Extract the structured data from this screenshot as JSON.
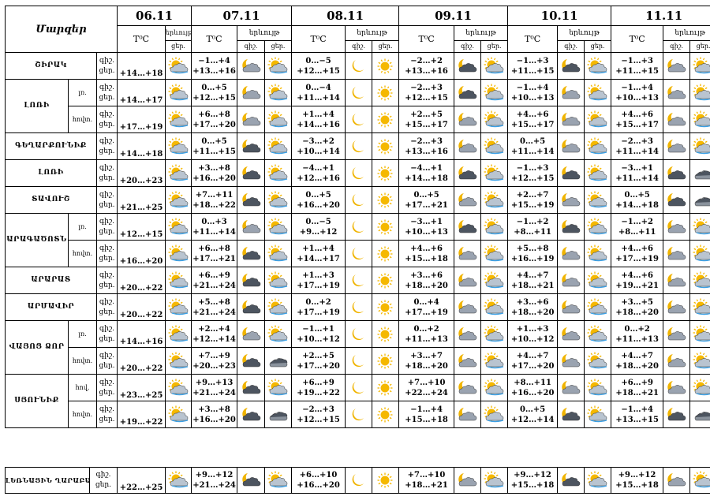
{
  "header": {
    "region_label": "Մարզեր",
    "temp_label": "T⁰C",
    "phen_label": "երևույթ",
    "night": "գիշ.",
    "day": "ցեր.",
    "dates": [
      "06.11",
      "07.11",
      "08.11",
      "09.11",
      "10.11",
      "11.11"
    ]
  },
  "colors": {
    "sun": "#f5b800",
    "cloud": "#9aa3b0",
    "dark_cloud": "#4d5560",
    "moon": "#f0b400",
    "rain": "#3aa0e6"
  },
  "regions": [
    {
      "name": "ՇԻՐԱԿ",
      "rows": [
        {
          "sub": "",
          "night": "գիշ.",
          "day": "ցեր.",
          "d0": "+14…+18",
          "d0i": "sun_cloud",
          "days": [
            [
              "−1…+4",
              "+13…+16",
              "moon_cloud",
              "sun_cloud"
            ],
            [
              "0…−5",
              "+12…+15",
              "moon",
              "sun"
            ],
            [
              "−2…+2",
              "+13…+16",
              "moon_cloud_dark",
              "sun_cloud"
            ],
            [
              "−1…+3",
              "+11…+15",
              "moon_cloud_dark",
              "sun_cloud"
            ],
            [
              "−1…+3",
              "+11…+15",
              "moon_cloud",
              "sun_cloud"
            ]
          ]
        }
      ]
    },
    {
      "name": "ԼՈՌԻ",
      "rows": [
        {
          "sub": "լռ.",
          "night": "գիշ.",
          "day": "ցեր.",
          "d0": "+14…+17",
          "d0i": "sun_cloud",
          "days": [
            [
              "0…+5",
              "+12…+15",
              "moon_cloud",
              "sun_cloud"
            ],
            [
              "0…−4",
              "+11…+14",
              "moon",
              "sun"
            ],
            [
              "−2…+3",
              "+12…+15",
              "moon_cloud_dark",
              "sun_cloud"
            ],
            [
              "−1…+4",
              "+10…+13",
              "moon_cloud",
              "sun_cloud"
            ],
            [
              "−1…+4",
              "+10…+13",
              "moon_cloud",
              "sun_cloud"
            ]
          ]
        },
        {
          "sub": "հովտ.",
          "night": "գիշ.",
          "day": "ցեր.",
          "d0": "+17…+19",
          "d0i": "sun_cloud",
          "days": [
            [
              "+6…+8",
              "+17…+20",
              "moon_cloud",
              "sun_cloud"
            ],
            [
              "+1…+4",
              "+14…+16",
              "moon",
              "sun"
            ],
            [
              "+2…+5",
              "+15…+17",
              "moon_cloud",
              "sun_cloud"
            ],
            [
              "+4…+6",
              "+15…+17",
              "moon_cloud",
              "sun_cloud"
            ],
            [
              "+4…+6",
              "+15…+17",
              "moon_cloud",
              "sun_cloud"
            ]
          ]
        }
      ]
    },
    {
      "name": "ԳԵՂԱՐՔՈՒՆԻՔ",
      "rows": [
        {
          "sub": "",
          "night": "գիշ.",
          "day": "ցեր.",
          "d0": "+14…+18",
          "d0i": "sun_cloud",
          "days": [
            [
              "0…+5",
              "+11…+15",
              "moon_cloud_dark",
              "sun_cloud"
            ],
            [
              "−3…+2",
              "+10…+14",
              "moon",
              "sun"
            ],
            [
              "−2…+3",
              "+13…+16",
              "moon_cloud",
              "sun_cloud"
            ],
            [
              "0…+5",
              "+11…+14",
              "moon_cloud",
              "sun_cloud"
            ],
            [
              "−2…+3",
              "+11…+14",
              "moon_cloud",
              "sun_cloud"
            ]
          ]
        }
      ]
    },
    {
      "name": "ԼՈՌԻ",
      "rows": [
        {
          "sub": "",
          "night": "գիշ.",
          "day": "ցեր.",
          "d0": "+20…+23",
          "d0i": "sun_cloud",
          "days": [
            [
              "+3…+8",
              "+16…+20",
              "moon_cloud_dark",
              "sun_cloud"
            ],
            [
              "−4…+1",
              "+12…+16",
              "moon",
              "sun"
            ],
            [
              "−4…+1",
              "+14…+18",
              "moon_cloud_dark",
              "sun_cloud"
            ],
            [
              "−1…+3",
              "+12…+15",
              "moon_cloud_dark",
              "sun_cloud"
            ],
            [
              "−3…+1",
              "+11…+14",
              "moon_cloud_dark",
              "cloud_dark"
            ]
          ]
        }
      ]
    },
    {
      "name": "ՏԱՎՈՒՇ",
      "rows": [
        {
          "sub": "",
          "night": "գիշ.",
          "day": "ցեր.",
          "d0": "+21…+25",
          "d0i": "sun_cloud",
          "days": [
            [
              "+7…+11",
              "+18…+22",
              "moon_cloud_dark",
              "sun_cloud"
            ],
            [
              "0…+5",
              "+16…+20",
              "moon",
              "sun"
            ],
            [
              "0…+5",
              "+17…+21",
              "moon_cloud",
              "sun_cloud"
            ],
            [
              "+2…+7",
              "+15…+19",
              "moon_cloud",
              "sun_cloud"
            ],
            [
              "0…+5",
              "+14…+18",
              "moon_cloud_dark",
              "cloud_dark"
            ]
          ]
        }
      ]
    },
    {
      "name": "ԱՐԱԳԱԾՈՏՆ",
      "rows": [
        {
          "sub": "լռ.",
          "night": "գիշ.",
          "day": "ցեր.",
          "d0": "+12…+15",
          "d0i": "sun_cloud",
          "days": [
            [
              "0…+3",
              "+11…+14",
              "moon_cloud",
              "sun_cloud"
            ],
            [
              "0…−5",
              "+9…+12",
              "moon",
              "sun"
            ],
            [
              "−3…+1",
              "+10…+13",
              "moon_cloud_dark",
              "sun_cloud"
            ],
            [
              "−1…+2",
              "+8…+11",
              "moon_cloud_dark",
              "sun_cloud"
            ],
            [
              "−1…+2",
              "+8…+11",
              "moon_cloud",
              "sun_cloud"
            ]
          ]
        },
        {
          "sub": "հովտ.",
          "night": "գիշ.",
          "day": "ցեր.",
          "d0": "+16…+20",
          "d0i": "sun_cloud",
          "days": [
            [
              "+6…+8",
              "+17…+21",
              "moon_cloud_dark",
              "sun_cloud"
            ],
            [
              "+1…+4",
              "+14…+17",
              "moon",
              "sun"
            ],
            [
              "+4…+6",
              "+15…+18",
              "moon_cloud",
              "sun_cloud"
            ],
            [
              "+5…+8",
              "+16…+19",
              "moon_cloud",
              "sun_cloud"
            ],
            [
              "+4…+6",
              "+17…+19",
              "moon_cloud",
              "sun_cloud"
            ]
          ]
        }
      ]
    },
    {
      "name": "ԱՐԱՐԱՏ",
      "rows": [
        {
          "sub": "",
          "night": "գիշ.",
          "day": "ցեր.",
          "d0": "+20…+22",
          "d0i": "sun_cloud",
          "days": [
            [
              "+6…+9",
              "+21…+24",
              "moon_cloud_dark",
              "sun_cloud"
            ],
            [
              "+1…+3",
              "+17…+19",
              "moon",
              "sun"
            ],
            [
              "+3…+6",
              "+18…+20",
              "moon_cloud",
              "sun_cloud"
            ],
            [
              "+4…+7",
              "+18…+21",
              "moon_cloud",
              "sun_cloud"
            ],
            [
              "+4…+6",
              "+19…+21",
              "moon_cloud",
              "sun_cloud"
            ]
          ]
        }
      ]
    },
    {
      "name": "ԱՐՄԱՎԻՐ",
      "rows": [
        {
          "sub": "",
          "night": "գիշ.",
          "day": "ցեր.",
          "d0": "+20…+22",
          "d0i": "sun_cloud",
          "days": [
            [
              "+5…+8",
              "+21…+24",
              "moon_cloud_dark",
              "sun_cloud"
            ],
            [
              "0…+2",
              "+17…+19",
              "moon",
              "sun"
            ],
            [
              "0…+4",
              "+17…+19",
              "moon_cloud",
              "sun_cloud"
            ],
            [
              "+3…+6",
              "+18…+20",
              "moon_cloud",
              "sun_cloud"
            ],
            [
              "+3…+5",
              "+18…+20",
              "moon_cloud",
              "sun_cloud"
            ]
          ]
        }
      ]
    },
    {
      "name": "ՎԱՅՈՑ ՁՈՐ",
      "rows": [
        {
          "sub": "լռ.",
          "night": "գիշ.",
          "day": "ցեր.",
          "d0": "+14…+16",
          "d0i": "sun_cloud",
          "days": [
            [
              "+2…+4",
              "+12…+14",
              "moon_cloud",
              "sun_cloud"
            ],
            [
              "−1…+1",
              "+10…+12",
              "moon",
              "sun"
            ],
            [
              "0…+2",
              "+11…+13",
              "moon_cloud",
              "sun_cloud"
            ],
            [
              "+1…+3",
              "+10…+12",
              "moon_cloud",
              "sun_cloud"
            ],
            [
              "0…+2",
              "+11…+13",
              "moon_cloud",
              "sun_cloud"
            ]
          ]
        },
        {
          "sub": "հովտ.",
          "night": "գիշ.",
          "day": "ցեր.",
          "d0": "+20…+22",
          "d0i": "sun_cloud",
          "days": [
            [
              "+7…+9",
              "+20…+23",
              "moon_cloud_dark",
              "cloud_dark"
            ],
            [
              "+2…+5",
              "+17…+20",
              "moon",
              "sun"
            ],
            [
              "+3…+7",
              "+18…+20",
              "moon_cloud",
              "sun_cloud"
            ],
            [
              "+4…+7",
              "+17…+20",
              "moon_cloud",
              "sun_cloud"
            ],
            [
              "+4…+7",
              "+18…+20",
              "moon_cloud",
              "sun_cloud"
            ]
          ]
        }
      ]
    },
    {
      "name": "ՍՅՈՒՆԻՔ",
      "rows": [
        {
          "sub": "հով.",
          "night": "գիշ.",
          "day": "ցեր.",
          "d0": "+23…+25",
          "d0i": "sun_cloud",
          "days": [
            [
              "+9…+13",
              "+21…+24",
              "moon_cloud_dark",
              "sun_cloud"
            ],
            [
              "+6…+9",
              "+19…+22",
              "moon",
              "sun"
            ],
            [
              "+7…+10",
              "+22…+24",
              "moon_cloud",
              "sun_cloud"
            ],
            [
              "+8…+11",
              "+16…+20",
              "moon_cloud",
              "sun_cloud"
            ],
            [
              "+6…+9",
              "+18…+21",
              "moon_cloud",
              "sun_cloud"
            ]
          ]
        },
        {
          "sub": "հովտ.",
          "night": "գիշ.",
          "day": "ցեր.",
          "d0": "+19…+22",
          "d0i": "sun_cloud",
          "days": [
            [
              "+3…+8",
              "+16…+20",
              "moon_cloud_dark",
              "cloud_dark"
            ],
            [
              "−2…+3",
              "+12…+15",
              "moon",
              "sun"
            ],
            [
              "−1…+4",
              "+15…+18",
              "moon_cloud",
              "sun_cloud"
            ],
            [
              "0…+5",
              "+12…+14",
              "moon_cloud_dark",
              "sun_cloud"
            ],
            [
              "−1…+4",
              "+13…+15",
              "moon_cloud_dark",
              "cloud_dark"
            ]
          ]
        }
      ]
    }
  ],
  "bottom": {
    "name": "ԼԵՌՆԱՅԻՆ ՂԱՐԱԲԱՂ",
    "night": "գիշ.",
    "day": "ցեր.",
    "d0": "+22…+25",
    "d0i": "sun_cloud",
    "days": [
      [
        "+9…+12",
        "+21…+24",
        "moon_cloud_dark",
        "sun_cloud"
      ],
      [
        "+6…+10",
        "+16…+20",
        "moon",
        "sun"
      ],
      [
        "+7…+10",
        "+18…+21",
        "moon_cloud",
        "sun_cloud"
      ],
      [
        "+9…+12",
        "+15…+18",
        "moon_cloud_dark",
        "sun_cloud"
      ],
      [
        "+9…+12",
        "+15…+18",
        "moon_cloud",
        "sun_cloud"
      ]
    ]
  }
}
